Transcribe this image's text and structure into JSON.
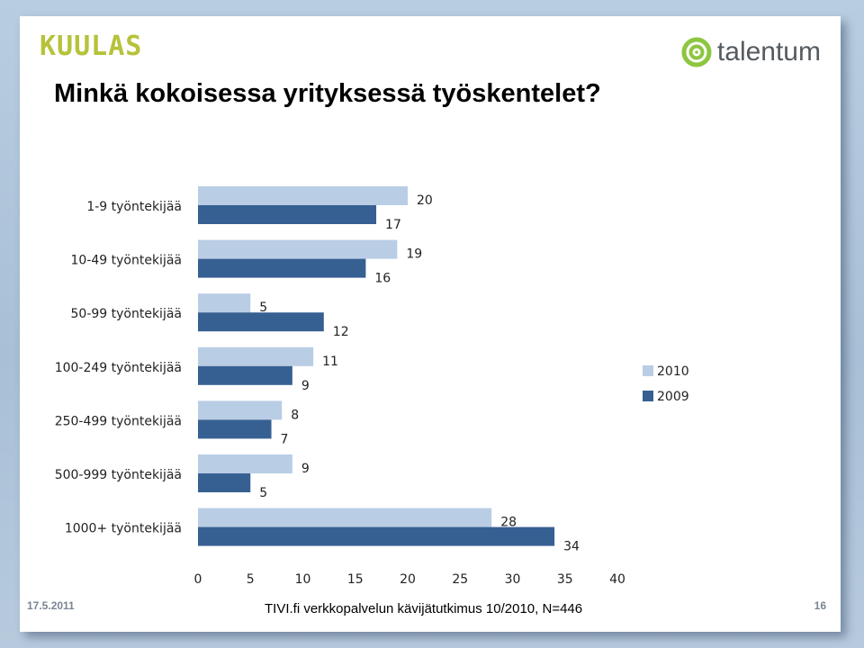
{
  "header": {
    "brand_left": "KUULAS",
    "brand_right": "talentum",
    "title": "Minkä kokoisessa yrityksessä työskentelet?"
  },
  "footer": {
    "date": "17.5.2011",
    "source": "TIVI.fi verkkopalvelun kävijätutkimus 10/2010, N=446",
    "page": "16"
  },
  "colors": {
    "series_2010": "#b9cde5",
    "series_2009": "#376092",
    "brand_green": "#8dc63f",
    "brand_text": "#b6c23a"
  },
  "chart_data": {
    "type": "bar",
    "orientation": "horizontal",
    "categories": [
      "1-9 työntekijää",
      "10-49 työntekijää",
      "50-99 työntekijää",
      "100-249 työntekijää",
      "250-499 työntekijää",
      "500-999 työntekijää",
      "1000+ työntekijää"
    ],
    "series": [
      {
        "name": "2010",
        "values": [
          20,
          19,
          5,
          11,
          8,
          9,
          28
        ]
      },
      {
        "name": "2009",
        "values": [
          17,
          16,
          12,
          9,
          7,
          5,
          34
        ]
      }
    ],
    "xlim": [
      0,
      40
    ],
    "xticks": [
      "0",
      "5",
      "10",
      "15",
      "20",
      "25",
      "30",
      "35",
      "40"
    ],
    "grid": false,
    "legend_position": "right",
    "title": "",
    "xlabel": "",
    "ylabel": ""
  }
}
